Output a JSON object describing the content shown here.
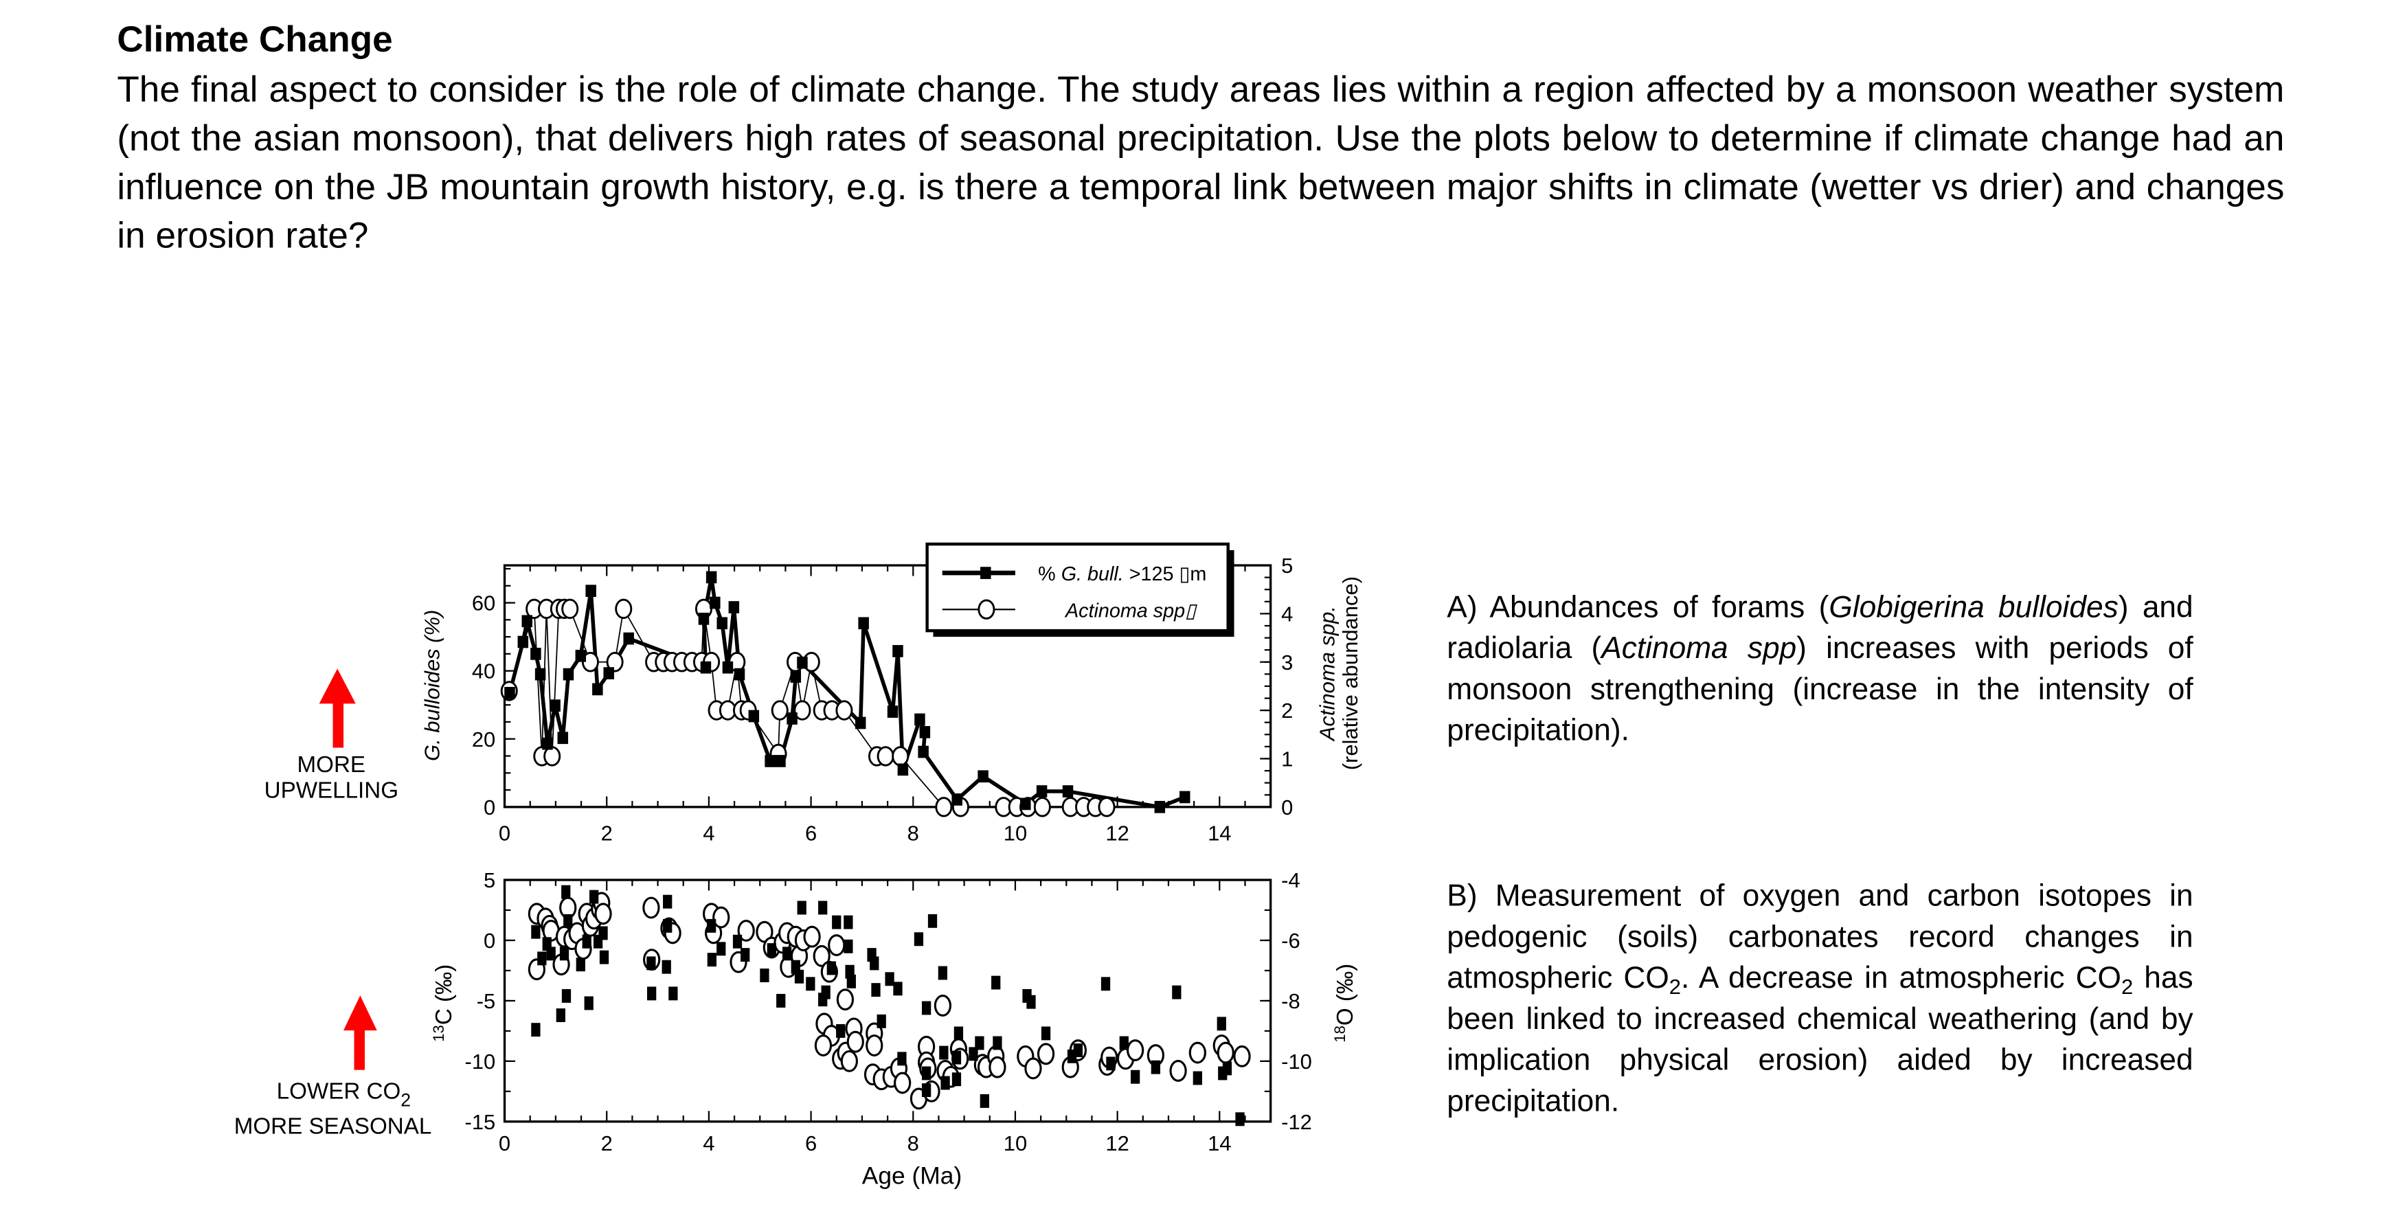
{
  "heading": "Climate Change",
  "intro": "The final aspect to consider is the role of climate change. The study areas lies within a region affected by a monsoon weather system (not the asian monsoon), that delivers high rates of seasonal precipitation. Use the plots below to determine if climate change had an influence on the JB mountain growth history, e.g. is there a temporal link between major shifts in climate (wetter vs drier) and changes in erosion rate?",
  "notes": {
    "a": {
      "p1": "A) Abundances of forams (",
      "i1": "Globigerina bulloides",
      "p2": ") and radiolaria (",
      "i2": "Actinoma spp",
      "p3": ") increases with periods of monsoon strengthening (increase in the intensity of precipitation)."
    },
    "b": {
      "p1": "B) Measurement of oxygen and carbon isotopes in pedogenic (soils) carbonates record changes in atmospheric CO",
      "s1": "2",
      "p2": ". A decrease in atmospheric CO",
      "s2": "2",
      "p3": " has been linked to increased chemical weathering (and by implication physical erosion) aided by increased precipitation."
    }
  },
  "annotations": {
    "upwelling": {
      "line1": "MORE",
      "line2": "UPWELLING",
      "arrow_color": "#ff0000"
    },
    "co2": {
      "line1": "LOWER CO",
      "sub": "2",
      "line2": "MORE SEASONAL",
      "arrow_color": "#ff0000"
    }
  },
  "chart_data": [
    {
      "type": "line",
      "xlabel": "",
      "ylabel": "G. bulloides (%)",
      "y2label": "Actinoma spp.",
      "y2label_line2": "(relative abundance)",
      "xlim": [
        0,
        15
      ],
      "ylim": [
        0,
        71
      ],
      "y2lim": [
        0,
        5
      ],
      "xticks": [
        "0",
        "2",
        "4",
        "6",
        "8",
        "10",
        "12",
        "14"
      ],
      "yticks": [
        "0",
        "20",
        "40",
        "60"
      ],
      "y2ticks": [
        "0",
        "1",
        "2",
        "3",
        "4",
        "5"
      ],
      "legend_position": "top-right",
      "series": [
        {
          "name": "% G. bull. >125 ▯m",
          "name_prefix": "% ",
          "name_italic": "G. bull.",
          "name_suffix": " >125 ▯m",
          "axis": "left",
          "marker": "filled-square",
          "x": [
            0.1,
            0.36,
            0.44,
            0.61,
            0.7,
            0.84,
            0.99,
            1.14,
            1.25,
            1.49,
            1.69,
            1.82,
            2.04,
            2.43,
            3.94,
            3.9,
            4.05,
            4.12,
            4.26,
            4.37,
            4.49,
            4.6,
            4.88,
            5.2,
            5.4,
            5.63,
            5.7,
            5.83,
            6.97,
            7.03,
            7.6,
            7.7,
            7.8,
            8.13,
            8.23,
            8.2,
            8.86,
            9.37,
            10.2,
            10.52,
            11.03,
            12.83,
            13.32
          ],
          "y": [
            33.5,
            48.5,
            54.6,
            45,
            39,
            18.6,
            29.8,
            20.3,
            39,
            44.4,
            63.5,
            34.6,
            39.3,
            49.5,
            41,
            55.3,
            67.5,
            60,
            54,
            41,
            58.7,
            39,
            26.7,
            13.5,
            13.5,
            26,
            38.3,
            42.4,
            24.7,
            54,
            28,
            45.8,
            11,
            25.7,
            22,
            16.2,
            2.2,
            9,
            0.9,
            4.6,
            4.6,
            0,
            2.9
          ]
        },
        {
          "name": "Actinoma spp▯",
          "axis": "right",
          "marker": "open-circle",
          "x": [
            0.09,
            0.58,
            0.73,
            0.82,
            0.93,
            1.06,
            1.17,
            1.28,
            1.68,
            2.16,
            2.33,
            2.92,
            3.11,
            3.28,
            3.47,
            3.67,
            3.86,
            3.9,
            4.05,
            4.15,
            4.37,
            4.55,
            4.64,
            4.77,
            5.36,
            5.39,
            5.69,
            5.83,
            6.01,
            6.21,
            6.41,
            6.65,
            7.29,
            7.46,
            7.75,
            8.6,
            8.93,
            9.77,
            10.03,
            10.25,
            10.53,
            11.08,
            11.34,
            11.57,
            11.79
          ],
          "y": [
            2.4,
            4.1,
            1.05,
            4.1,
            1.05,
            4.1,
            4.1,
            4.1,
            3.0,
            3.0,
            4.1,
            3.0,
            3.0,
            3.0,
            3.0,
            3.0,
            3.0,
            4.1,
            3.0,
            2.0,
            2.0,
            3.0,
            2.0,
            2.0,
            1.1,
            2.0,
            3.0,
            2.0,
            3.0,
            2.0,
            2.0,
            2.0,
            1.05,
            1.05,
            1.05,
            0,
            0,
            0,
            0,
            0,
            0,
            0,
            0,
            0,
            0
          ]
        }
      ]
    },
    {
      "type": "scatter",
      "xlabel": "Age (Ma)",
      "ylabel_sup": "13",
      "ylabel": "C (‰)",
      "y2label_sup": "18",
      "y2label": "O (‰)",
      "xlim": [
        0,
        15
      ],
      "ylim": [
        -15,
        5
      ],
      "y2lim": [
        -12,
        -4
      ],
      "xticks": [
        "0",
        "2",
        "4",
        "6",
        "8",
        "10",
        "12",
        "14"
      ],
      "yticks": [
        "-15",
        "-10",
        "-5",
        "0",
        "5"
      ],
      "y2ticks": [
        "-12",
        "-10",
        "-8",
        "-6",
        "-4"
      ],
      "series": [
        {
          "marker": "filled-square",
          "x": [
            0.61,
            0.61,
            0.73,
            0.83,
            0.91,
            1.1,
            1.2,
            1.21,
            1.17,
            1.24,
            1.49,
            1.61,
            1.65,
            1.75,
            1.83,
            1.93,
            1.95,
            2.87,
            2.88,
            3.19,
            3.17,
            3.3,
            3.19,
            4.05,
            4.06,
            4.24,
            4.56,
            4.71,
            5.09,
            5.23,
            5.41,
            5.53,
            5.7,
            5.77,
            5.82,
            5.99,
            6.23,
            6.23,
            6.29,
            6.4,
            6.5,
            6.58,
            6.73,
            6.73,
            6.76,
            6.79,
            7.19,
            7.24,
            7.27,
            7.38,
            7.54,
            7.7,
            7.78,
            8.11,
            8.26,
            8.38,
            8.26,
            8.26,
            8.58,
            8.63,
            8.6,
            8.89,
            8.85,
            8.85,
            9.18,
            9.3,
            9.4,
            9.62,
            9.65,
            10.23,
            10.31,
            10.6,
            11.11,
            11.23,
            11.77,
            11.87,
            12.13,
            12.35,
            12.75,
            13.16,
            13.57,
            14.04,
            14.06,
            14.15,
            14.4
          ],
          "y": [
            0.7,
            -7.4,
            -1.5,
            -0.3,
            -1.1,
            -6.2,
            4,
            -4.6,
            -1.1,
            1.6,
            -2,
            -0.1,
            -5.2,
            3.6,
            -0.1,
            0.6,
            -1.4,
            -1.9,
            -4.4,
            3.2,
            -2.2,
            -4.4,
            1.2,
            1.2,
            -1.6,
            -0.7,
            -0.1,
            -1.2,
            -2.9,
            -0.8,
            -5,
            -1.1,
            -2.2,
            -3,
            2.7,
            -3.6,
            2.7,
            -4.9,
            -4.3,
            -2.3,
            1.5,
            -7.5,
            1.5,
            -0.5,
            -2.6,
            -3.4,
            -1.2,
            -1.9,
            -4.1,
            -6.7,
            -3.2,
            -4,
            -9.8,
            0.1,
            -5.6,
            1.6,
            -12.4,
            -11,
            -2.7,
            -11.8,
            -9.3,
            -7.7,
            -9.7,
            -11.5,
            -9.4,
            -8.5,
            -13.3,
            -3.5,
            -8.5,
            -4.6,
            -5.1,
            -7.7,
            -9.6,
            -9.1,
            -3.6,
            -10.2,
            -8.5,
            -11.3,
            -10.5,
            -4.3,
            -11.4,
            -6.9,
            -11,
            -10.6,
            -14.8
          ]
        },
        {
          "marker": "open-circle",
          "x": [
            0.63,
            0.63,
            0.8,
            0.88,
            0.91,
            1.11,
            1.17,
            1.24,
            1.32,
            1.42,
            1.54,
            1.61,
            1.68,
            1.75,
            1.86,
            1.9,
            1.93,
            2.87,
            2.88,
            3.22,
            3.29,
            4.05,
            4.09,
            4.24,
            4.58,
            4.73,
            5.09,
            5.23,
            5.44,
            5.53,
            5.56,
            5.7,
            5.77,
            5.85,
            6.02,
            6.21,
            6.36,
            6.5,
            6.67,
            6.26,
            6.4,
            6.24,
            6.58,
            6.68,
            6.75,
            6.84,
            6.87,
            7.24,
            7.24,
            7.21,
            7.38,
            7.57,
            7.72,
            7.79,
            8.11,
            8.26,
            8.26,
            8.29,
            8.36,
            8.58,
            8.63,
            8.74,
            8.89,
            8.92,
            9.36,
            9.43,
            9.62,
            9.65,
            10.2,
            10.35,
            10.6,
            11.08,
            11.23,
            11.8,
            11.84,
            12.16,
            12.35,
            12.75,
            13.19,
            13.57,
            14.04,
            14.12,
            14.44
          ],
          "y": [
            2.2,
            -2.4,
            1.8,
            1.2,
            0.8,
            -2,
            0.3,
            2.7,
            0.1,
            0.6,
            -0.7,
            2.2,
            1.2,
            1.8,
            2.6,
            3.1,
            2.2,
            2.7,
            -1.6,
            1,
            0.6,
            2.2,
            0.6,
            1.9,
            -1.8,
            0.8,
            0.7,
            -0.6,
            -0.2,
            0.6,
            -2.2,
            0.3,
            -1.3,
            0,
            0.3,
            -1.3,
            -2.6,
            -0.4,
            -4.9,
            -6.9,
            -7.9,
            -8.7,
            -9.8,
            -9.3,
            -10,
            -7.3,
            -8.4,
            -7.7,
            -8.7,
            -11.1,
            -11.5,
            -11.3,
            -10.6,
            -11.8,
            -13.1,
            -8.8,
            -10.1,
            -10.6,
            -12.5,
            -5.4,
            -10.8,
            -11.3,
            -9,
            -9.8,
            -10.3,
            -10.5,
            -9.6,
            -10.5,
            -9.6,
            -10.6,
            -9.4,
            -10.5,
            -9.1,
            -10.3,
            -9.7,
            -9.8,
            -9.1,
            -9.5,
            -10.8,
            -9.3,
            -8.7,
            -9.3,
            -9.6
          ]
        }
      ]
    }
  ]
}
